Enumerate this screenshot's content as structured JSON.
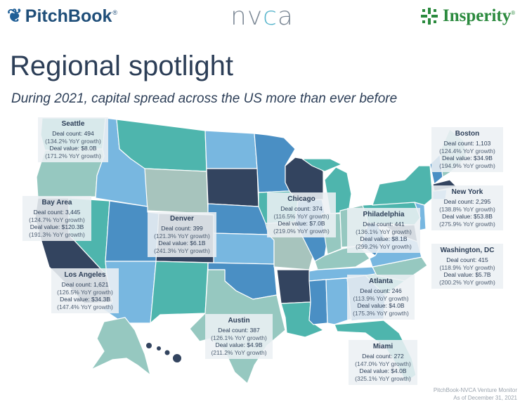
{
  "logos": {
    "pitchbook": "PitchBook",
    "nvca_n": "nv",
    "nvca_c": "c",
    "nvca_a": "a",
    "insperity": "Insperity"
  },
  "title": "Regional spotlight",
  "subtitle": "During 2021, capital spread across the US more than ever before",
  "colors": {
    "dark_navy": "#33445f",
    "mid_blue": "#4a8fc4",
    "light_blue": "#78b7e0",
    "teal": "#4eb5ad",
    "light_teal": "#96c8c0",
    "sage": "#a7c4bd"
  },
  "regions": [
    {
      "city": "Seattle",
      "deal_count": "Deal count: 494",
      "count_growth": "(134.2% YoY growth)",
      "deal_value": "Deal value: $8.0B",
      "value_growth": "(171.2% YoY growth)"
    },
    {
      "city": "Bay Area",
      "deal_count": "Deal count: 3,445",
      "count_growth": "(124.7% YoY growth)",
      "deal_value": "Deal value: $120.3B",
      "value_growth": "(191.3% YoY growth)"
    },
    {
      "city": "Denver",
      "deal_count": "Deal count: 399",
      "count_growth": "(121.3% YoY growth)",
      "deal_value": "Deal value: $6.1B",
      "value_growth": "(241.3% YoY growth)"
    },
    {
      "city": "Los Angeles",
      "deal_count": "Deal count: 1,621",
      "count_growth": "(126.5% YoY growth)",
      "deal_value": "Deal value: $34.3B",
      "value_growth": "(147.4% YoY growth)"
    },
    {
      "city": "Chicago",
      "deal_count": "Deal count: 374",
      "count_growth": "(116.5% YoY growth)",
      "deal_value": "Deal value: $7.0B",
      "value_growth": "(219.0% YoY growth)"
    },
    {
      "city": "Philadelphia",
      "deal_count": "Deal count: 441",
      "count_growth": "(136.1% YoY growth)",
      "deal_value": "Deal value: $8.1B",
      "value_growth": "(299.2% YoY growth)"
    },
    {
      "city": "Boston",
      "deal_count": "Deal count: 1,103",
      "count_growth": "(124.4% YoY growth)",
      "deal_value": "Deal value: $34.9B",
      "value_growth": "(194.9% YoY growth)"
    },
    {
      "city": "New York",
      "deal_count": "Deal count: 2,295",
      "count_growth": "(138.8% YoY growth)",
      "deal_value": "Deal value: $53.8B",
      "value_growth": "(275.9% YoY growth)"
    },
    {
      "city": "Washington, DC",
      "deal_count": "Deal count: 415",
      "count_growth": "(118.9% YoY growth)",
      "deal_value": "Deal value: $5.7B",
      "value_growth": "(200.2% YoY growth)"
    },
    {
      "city": "Atlanta",
      "deal_count": "Deal count: 246",
      "count_growth": "(113.9% YoY growth)",
      "deal_value": "Deal value: $4.0B",
      "value_growth": "(175.3% YoY growth)"
    },
    {
      "city": "Austin",
      "deal_count": "Deal count: 387",
      "count_growth": "(126.1% YoY growth)",
      "deal_value": "Deal value: $4.9B",
      "value_growth": "(211.2% YoY growth)"
    },
    {
      "city": "Miami",
      "deal_count": "Deal count: 272",
      "count_growth": "(147.0% YoY growth)",
      "deal_value": "Deal value: $4.0B",
      "value_growth": "(325.1% YoY growth)"
    }
  ],
  "source": {
    "line1": "PitchBook-NVCA Venture Monitor",
    "line2": "As of December 31, 2021"
  }
}
